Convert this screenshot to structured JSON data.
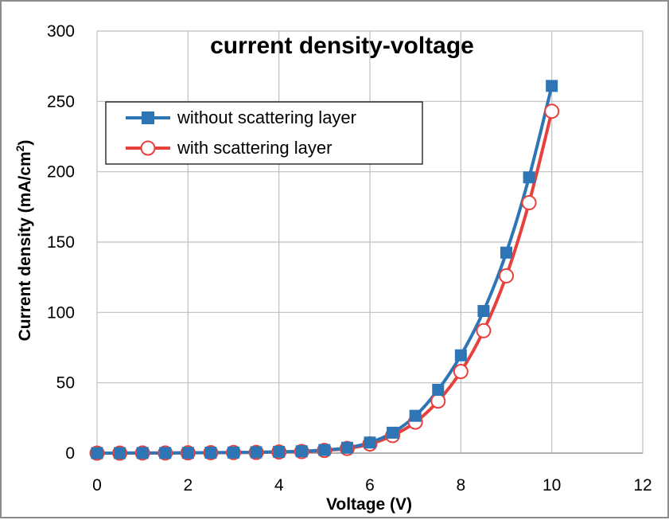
{
  "chart_data": {
    "type": "line",
    "title": "current density-voltage",
    "xlabel": "Voltage (V)",
    "ylabel": "Current density (mA/cm²)",
    "ylabel_main": "Current density (mA/cm",
    "ylabel_sup": "2",
    "ylabel_end": ")",
    "xlim": [
      0,
      12
    ],
    "ylim": [
      0,
      300
    ],
    "xticks": [
      0,
      2,
      4,
      6,
      8,
      10,
      12
    ],
    "yticks": [
      0,
      50,
      100,
      150,
      200,
      250,
      300
    ],
    "grid": "horizontal",
    "legend_position": "top-left",
    "x": [
      0,
      0.5,
      1,
      1.5,
      2,
      2.5,
      3,
      3.5,
      4,
      4.5,
      5,
      5.5,
      6,
      6.5,
      7,
      7.5,
      8,
      8.5,
      9,
      9.5,
      10
    ],
    "series": [
      {
        "name": "without scattering layer",
        "color": "#2e75b6",
        "marker": "filled-square",
        "values": [
          0,
          0,
          0.1,
          0.1,
          0.2,
          0.3,
          0.4,
          0.6,
          0.9,
          1.3,
          2.2,
          3.8,
          7.5,
          14.5,
          26.5,
          45,
          69.5,
          101,
          142.5,
          196,
          261
        ]
      },
      {
        "name": "with scattering layer",
        "color": "#e8403c",
        "marker": "open-circle",
        "values": [
          0,
          0,
          0.1,
          0.1,
          0.2,
          0.3,
          0.4,
          0.5,
          0.8,
          1.1,
          1.9,
          3.3,
          6.5,
          12.5,
          22,
          37,
          58,
          87,
          126,
          178,
          243
        ]
      }
    ]
  }
}
